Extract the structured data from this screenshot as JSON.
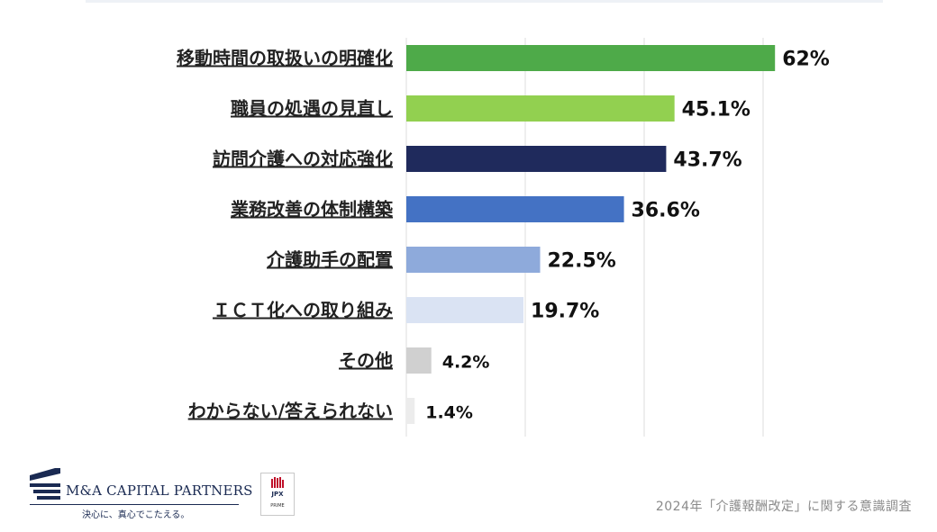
{
  "chart_data": {
    "type": "bar",
    "orientation": "horizontal",
    "categories": [
      "移動時間の取扱いの明確化",
      "職員の処遇の見直し",
      "訪問介護への対応強化",
      "業務改善の体制構築",
      "介護助手の配置",
      "ＩＣＴ化への取り組み",
      "その他",
      "わからない/答えられない"
    ],
    "values": [
      62,
      45.1,
      43.7,
      36.6,
      22.5,
      19.7,
      4.2,
      1.4
    ],
    "value_labels": [
      "62%",
      "45.1%",
      "43.7%",
      "36.6%",
      "22.5%",
      "19.7%",
      "4.2%",
      "1.4%"
    ],
    "bar_colors": [
      "#4eaa49",
      "#92d050",
      "#1f2a5c",
      "#4472c4",
      "#8eaadb",
      "#dae3f3",
      "#d0d0d0",
      "#ececec"
    ],
    "xlim": [
      0,
      60
    ],
    "grid": true,
    "legend": "none",
    "title": "",
    "xlabel": "",
    "ylabel": ""
  },
  "footer": {
    "brand_name": "M&A CAPITAL PARTNERS",
    "brand_tagline": "決心に、真心でこたえる。",
    "jpx_label": "JPX",
    "jpx_sub": "PRIME",
    "survey_caption": "2024年「介護報酬改定」に関する意識調査"
  },
  "colors": {
    "brand_navy": "#1a2a52",
    "gridline": "#dcdcdc"
  }
}
